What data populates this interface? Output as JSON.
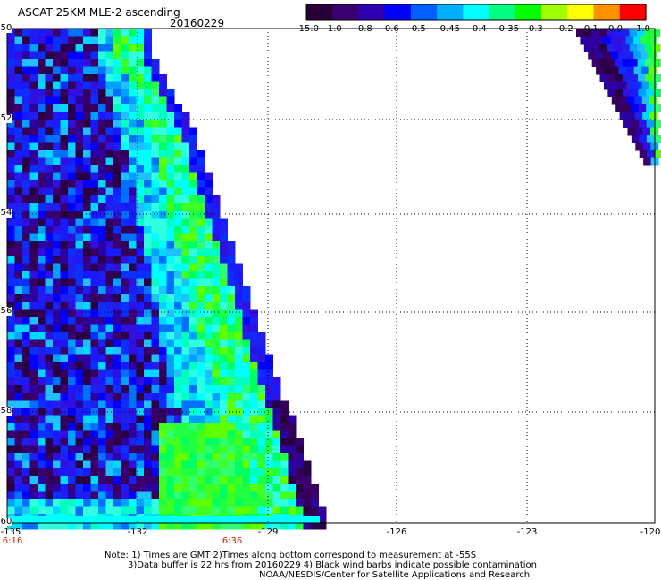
{
  "header": {
    "title": "ASCAT 25KM MLE-2 ascending",
    "date": "20160229"
  },
  "colorbar": {
    "labels": [
      "-15.0",
      "-1.0",
      "-0.8",
      "-0.6",
      "-0.5",
      "-0.45",
      "-0.4",
      "-0.35",
      "-0.3",
      "-0.2",
      "-0.1",
      "0.0",
      "1.0"
    ],
    "colors": [
      "#2a0038",
      "#3a0070",
      "#2d00b0",
      "#0000ff",
      "#0060ff",
      "#00b0ff",
      "#00ffff",
      "#00ff80",
      "#00ff00",
      "#a0ff00",
      "#ffff00",
      "#ff9000",
      "#ff0000"
    ]
  },
  "axes": {
    "lat_labels": [
      "-50",
      "-52",
      "-54",
      "-56",
      "-58",
      "-60"
    ],
    "lon_labels": [
      "-135",
      "-132",
      "-129",
      "-126",
      "-123",
      "-120"
    ],
    "time_labels": [
      "6:16",
      "6:36"
    ]
  },
  "notes": {
    "line1": "Note: 1) Times are GMT 2)Times along bottom correspond to measurement at -55S",
    "line2": "3)Data buffer is 22 hrs from 20160229 4) Black wind barbs indicate possible contamination",
    "line3": "NOAA/NESDIS/Center for Satellite Applications and Research"
  }
}
